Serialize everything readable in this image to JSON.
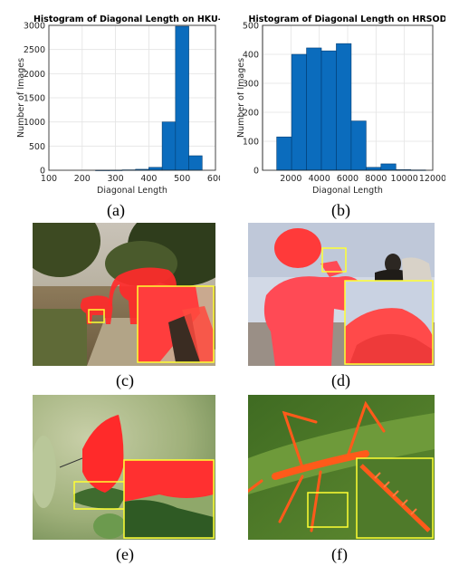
{
  "chart_data": [
    {
      "type": "bar",
      "title": "Histogram of Diagonal Length on HKU-IS",
      "xlabel": "Diagonal Length",
      "ylabel": "Number of Images",
      "xlim": [
        100,
        600
      ],
      "ylim": [
        0,
        3000
      ],
      "xticks": [
        100,
        200,
        300,
        400,
        500,
        600
      ],
      "yticks": [
        0,
        500,
        1000,
        1500,
        2000,
        2500,
        3000
      ],
      "grid": true,
      "bins": [
        {
          "x0": 240,
          "x1": 280,
          "value": 2
        },
        {
          "x0": 280,
          "x1": 320,
          "value": 3
        },
        {
          "x0": 320,
          "x1": 360,
          "value": 8
        },
        {
          "x0": 360,
          "x1": 400,
          "value": 20
        },
        {
          "x0": 400,
          "x1": 440,
          "value": 60
        },
        {
          "x0": 440,
          "x1": 480,
          "value": 1000
        },
        {
          "x0": 480,
          "x1": 520,
          "value": 2980
        },
        {
          "x0": 520,
          "x1": 560,
          "value": 300
        }
      ],
      "color": "#0b6cbd"
    },
    {
      "type": "bar",
      "title": "Histogram of Diagonal Length on HRSOD",
      "xlabel": "Diagonal Length",
      "ylabel": "Number of Images",
      "xlim": [
        0,
        12000
      ],
      "ylim": [
        0,
        500
      ],
      "xticks": [
        2000,
        4000,
        6000,
        8000,
        10000,
        12000
      ],
      "yticks": [
        0,
        100,
        200,
        300,
        400,
        500
      ],
      "grid": true,
      "bins": [
        {
          "x0": 1000,
          "x1": 2050,
          "value": 115
        },
        {
          "x0": 2050,
          "x1": 3100,
          "value": 400
        },
        {
          "x0": 3100,
          "x1": 4150,
          "value": 422
        },
        {
          "x0": 4150,
          "x1": 5200,
          "value": 412
        },
        {
          "x0": 5200,
          "x1": 6250,
          "value": 437
        },
        {
          "x0": 6250,
          "x1": 7300,
          "value": 170
        },
        {
          "x0": 7300,
          "x1": 8350,
          "value": 10
        },
        {
          "x0": 8350,
          "x1": 9400,
          "value": 22
        },
        {
          "x0": 9400,
          "x1": 10450,
          "value": 2
        },
        {
          "x0": 10450,
          "x1": 11500,
          "value": 1
        }
      ],
      "color": "#0b6cbd"
    }
  ],
  "captions": {
    "a": "(a)",
    "b": "(b)",
    "c": "(c)",
    "d": "(d)",
    "e": "(e)",
    "f": "(f)"
  },
  "colors": {
    "highlight": "#ffff33",
    "mask": "#ff2a2a"
  }
}
